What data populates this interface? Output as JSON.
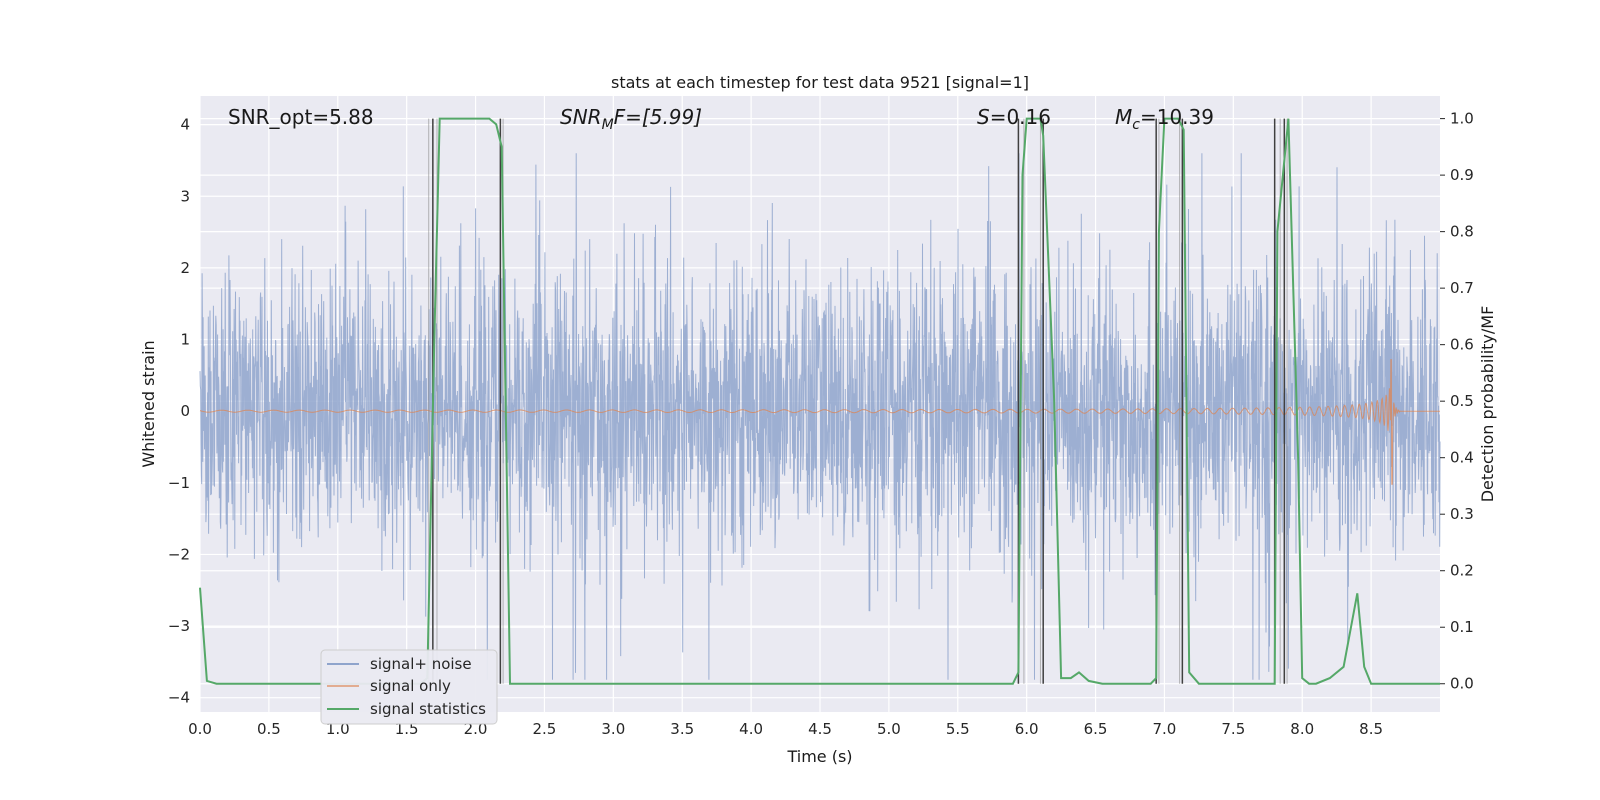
{
  "chart_data": {
    "type": "line",
    "title": "stats at each timestep for test data 9521 [signal=1]",
    "xlabel": "Time (s)",
    "ylabel": "Whitened strain",
    "y2label": "Detection probability/MF",
    "xlim": [
      0,
      9
    ],
    "ylim": [
      -4.2,
      4.4
    ],
    "y2lim": [
      -0.05,
      1.04
    ],
    "xticks": [
      "0.0",
      "0.5",
      "1.0",
      "1.5",
      "2.0",
      "2.5",
      "3.0",
      "3.5",
      "4.0",
      "4.5",
      "5.0",
      "5.5",
      "6.0",
      "6.5",
      "7.0",
      "7.5",
      "8.0",
      "8.5"
    ],
    "yticks": [
      "4",
      "3",
      "2",
      "1",
      "0",
      "−1",
      "−2",
      "−3",
      "−4"
    ],
    "y2ticks": [
      "1.0",
      "0.9",
      "0.8",
      "0.7",
      "0.6",
      "0.5",
      "0.4",
      "0.3",
      "0.2",
      "0.1",
      "0.0"
    ],
    "grid": true,
    "legend_position": "lower-left",
    "annotations": {
      "snr_opt": "SNR_opt=5.88",
      "snr_mf": "SNR",
      "snr_mf_sub": "M",
      "snr_mf_rest": "F=[5.99]",
      "s": "S",
      "s_rest": "=0.16",
      "mc": "M",
      "mc_sub": "c",
      "mc_rest": "=10.39"
    },
    "series": [
      {
        "name": "signal+ noise",
        "color": "#8fa4cc",
        "description_values": "noise band approx ±1.6 with spikes up to about 3.6 and down to about -3.7"
      },
      {
        "name": "signal only",
        "color": "#dd8452",
        "chirp_peak_time": 8.65,
        "chirp_peak_value": 0.72,
        "chirp_min_value": -1.02
      },
      {
        "name": "signal statistics",
        "color": "#55a868",
        "axis": "right",
        "x": [
          0.0,
          0.05,
          0.12,
          0.3,
          1.0,
          1.6,
          1.65,
          1.7,
          1.74,
          1.9,
          2.0,
          2.1,
          2.15,
          2.19,
          2.25,
          2.28,
          3.0,
          4.0,
          5.0,
          5.9,
          5.94,
          5.97,
          6.0,
          6.1,
          6.12,
          6.2,
          6.25,
          6.32,
          6.38,
          6.45,
          6.55,
          6.9,
          6.94,
          6.96,
          7.0,
          7.1,
          7.14,
          7.18,
          7.25,
          7.5,
          7.8,
          7.82,
          7.9,
          7.97,
          8.0,
          8.05,
          8.1,
          8.2,
          8.3,
          8.4,
          8.45,
          8.5,
          8.7,
          9.0
        ],
        "values": [
          0.17,
          0.005,
          0.0,
          0.0,
          0.0,
          0.0,
          0.01,
          0.6,
          1.0,
          1.0,
          1.0,
          1.0,
          0.99,
          0.95,
          0.0,
          0.0,
          0.0,
          0.0,
          0.0,
          0.0,
          0.02,
          0.9,
          1.0,
          1.0,
          0.97,
          0.5,
          0.01,
          0.01,
          0.02,
          0.005,
          0.0,
          0.0,
          0.01,
          0.8,
          1.0,
          1.0,
          0.98,
          0.02,
          0.0,
          0.0,
          0.0,
          0.8,
          1.0,
          0.4,
          0.01,
          0.0,
          0.0,
          0.01,
          0.03,
          0.16,
          0.03,
          0.0,
          0.0,
          0.0
        ]
      }
    ],
    "vertical_lines_dark": [
      1.69,
      2.18,
      5.94,
      6.12,
      6.94,
      7.13,
      7.8,
      7.87
    ],
    "vertical_lines_light": [
      1.66,
      1.72,
      2.2,
      5.98,
      6.1,
      6.96,
      7.11,
      7.84,
      7.89
    ]
  },
  "colors": {
    "plot_bg": "#eaeaf2",
    "grid": "#ffffff",
    "noise": "#8fa4cc",
    "signal": "#dd8452",
    "stats": "#55a868",
    "vline": "#404040"
  }
}
